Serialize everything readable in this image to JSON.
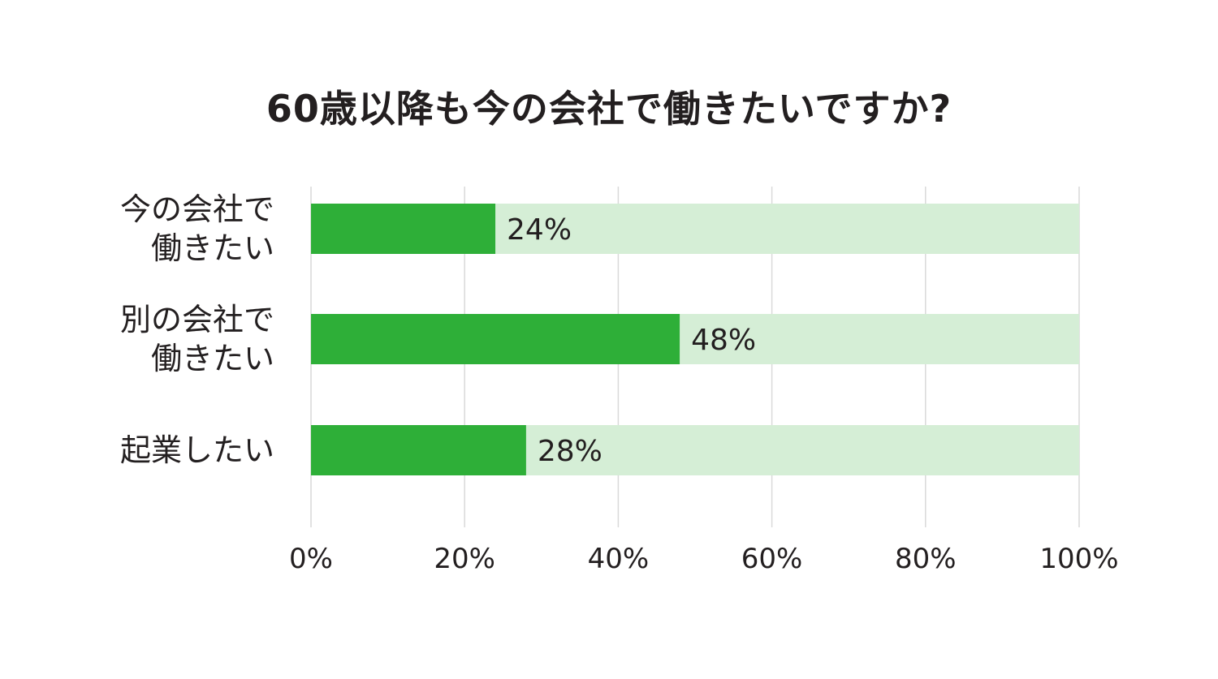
{
  "chart_data": {
    "type": "bar",
    "orientation": "horizontal",
    "stacked_background": true,
    "title": "60歳以降も今の会社で働きたいですか?",
    "categories": [
      [
        "今の会社で",
        "働きたい"
      ],
      [
        "別の会社で",
        "働きたい"
      ],
      [
        "起業したい"
      ]
    ],
    "values": [
      24,
      48,
      28
    ],
    "data_labels": [
      "24%",
      "48%",
      "28%"
    ],
    "xlim": [
      0,
      100
    ],
    "xticks": [
      0,
      20,
      40,
      60,
      80,
      100
    ],
    "xtick_labels": [
      "0%",
      "20%",
      "40%",
      "60%",
      "80%",
      "100%"
    ],
    "grid": "vertical",
    "colors": {
      "bar": "#2eaf38",
      "track": "#d5eed6",
      "grid": "#d9d9d9",
      "text": "#231f20"
    }
  }
}
